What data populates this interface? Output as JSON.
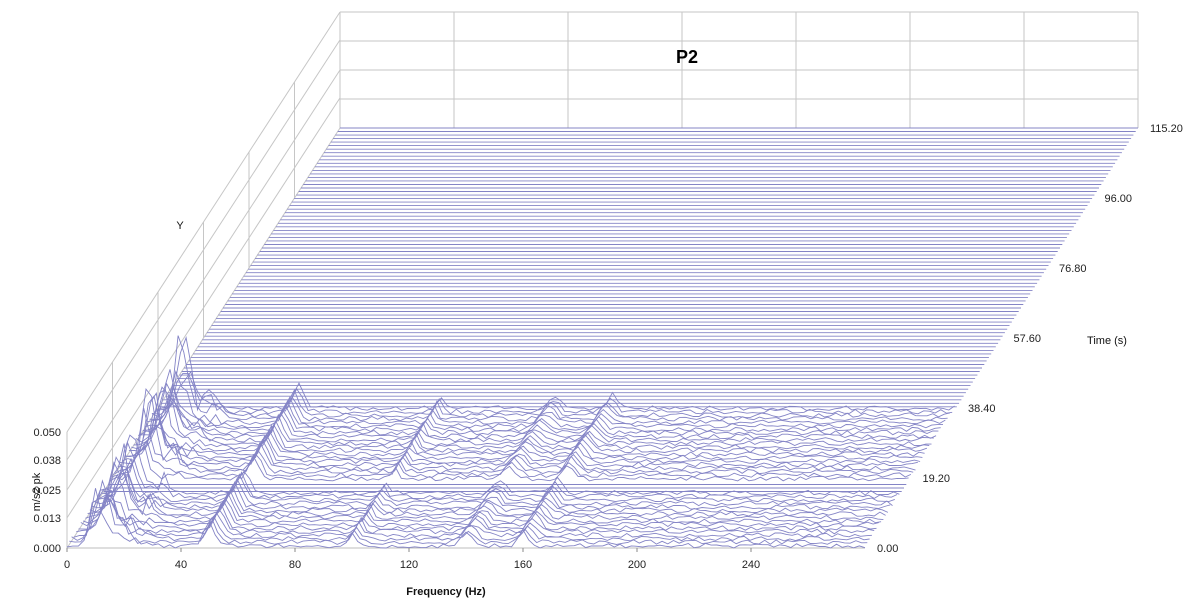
{
  "chart_data": {
    "type": "waterfall",
    "title": "P2",
    "xlabel": "Frequency (Hz)",
    "ylabel": "m/s2 pk",
    "zlabel": "Time (s)",
    "yaxis_name": "Y",
    "xlim": [
      0,
      280
    ],
    "ylim": [
      0,
      0.05
    ],
    "zlim": [
      0,
      115.2
    ],
    "x_ticks": [
      "0",
      "40",
      "80",
      "120",
      "160",
      "200",
      "240"
    ],
    "y_ticks": [
      "0.000",
      "0.013",
      "0.025",
      "0.038",
      "0.050"
    ],
    "z_ticks": [
      "0.00",
      "19.20",
      "38.40",
      "57.60",
      "76.80",
      "96.00",
      "115.20"
    ],
    "trace_count": 120,
    "active_time_range_s": [
      0,
      38.4
    ],
    "dominant_peaks_hz": [
      10,
      50,
      100,
      140,
      160
    ],
    "line_color": "#8484c6",
    "grid_color": "#c6c6c6"
  }
}
